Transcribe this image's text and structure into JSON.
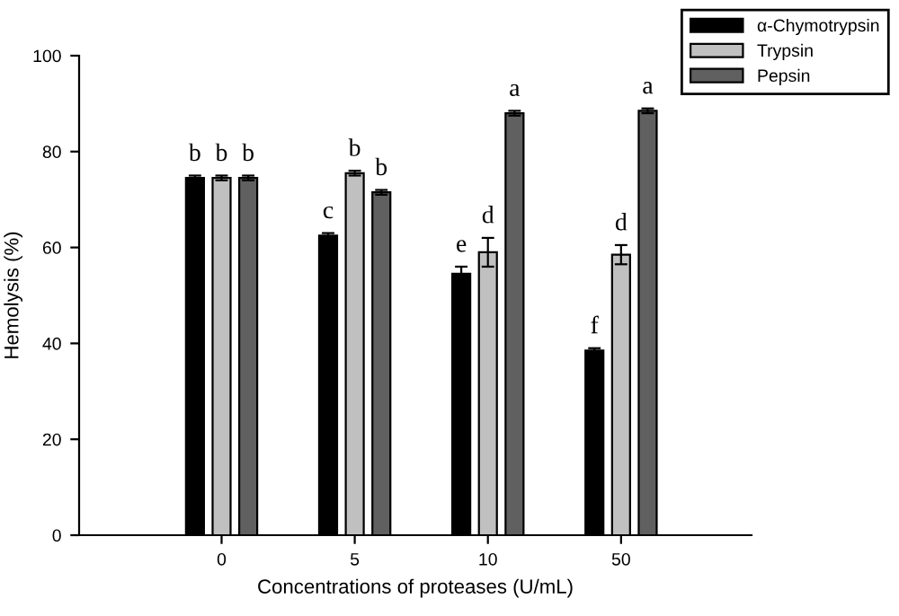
{
  "chart_data": {
    "type": "bar",
    "xlabel": "Concentrations of proteases (U/mL)",
    "ylabel": "Hemolysis (%)",
    "categories": [
      "0",
      "5",
      "10",
      "50"
    ],
    "series": [
      {
        "name": "α-Chymotrypsin",
        "color": "#000000",
        "values": [
          74.5,
          62.5,
          54.5,
          38.5
        ],
        "errors": [
          0.5,
          0.5,
          1.5,
          0.5
        ],
        "value_labels": [
          "b",
          "c",
          "e",
          "f"
        ]
      },
      {
        "name": "Trypsin",
        "color": "#c0c0c0",
        "values": [
          74.5,
          75.5,
          59,
          58.5
        ],
        "errors": [
          0.5,
          0.5,
          3,
          2
        ],
        "value_labels": [
          "b",
          "b",
          "d",
          "d"
        ]
      },
      {
        "name": "Pepsin",
        "color": "#606060",
        "values": [
          74.5,
          71.5,
          88,
          88.5
        ],
        "errors": [
          0.5,
          0.5,
          0.5,
          0.5
        ],
        "value_labels": [
          "b",
          "b",
          "a",
          "a"
        ]
      }
    ],
    "ylim": [
      0,
      100
    ],
    "yticks": [
      0,
      20,
      40,
      60,
      80,
      100
    ],
    "grid": false,
    "legend": "top right"
  }
}
